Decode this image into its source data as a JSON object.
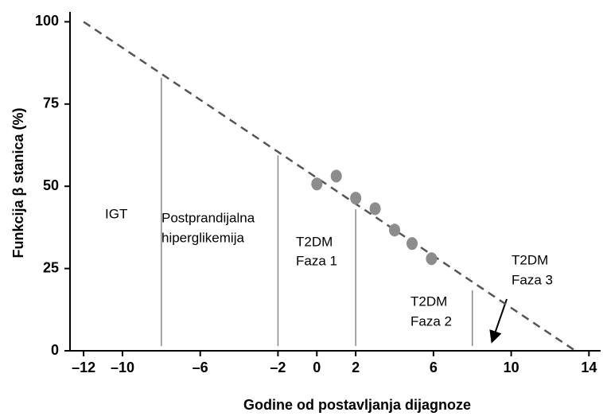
{
  "chart_data": {
    "type": "scatter",
    "xlabel": "Godine od postavljanja dijagnoze",
    "ylabel": "Funkcija β stanica (%)",
    "xlim": [
      -12.7,
      14.6
    ],
    "ylim": [
      0,
      103
    ],
    "xticks": [
      {
        "value": -12,
        "label": "–12"
      },
      {
        "value": -10,
        "label": "–10"
      },
      {
        "value": -6,
        "label": "–6"
      },
      {
        "value": -2,
        "label": "–2"
      },
      0,
      2,
      6,
      10,
      14
    ],
    "yticks": [
      0,
      25,
      50,
      75,
      100
    ],
    "color": "#8c8c8c",
    "x": [
      0,
      1,
      2,
      3,
      4,
      4.9,
      5.9
    ],
    "values": [
      50.7,
      53.1,
      46.4,
      43.2,
      36.7,
      32.6,
      28.0
    ],
    "trend": {
      "x": [
        -12,
        13.3
      ],
      "y": [
        100,
        0
      ]
    },
    "vlines": [
      {
        "x": -8,
        "top": 83
      },
      {
        "x": -2,
        "top": 59.4
      },
      {
        "x": 2,
        "top": 43
      },
      {
        "x": 8,
        "top": 18.4
      }
    ],
    "annotations": [
      [
        "IGT"
      ],
      [
        "Postprandijalna",
        "hiperglikemija"
      ],
      [
        "T2DM",
        "Faza 1"
      ],
      [
        "T2DM",
        "Faza 2"
      ],
      [
        "T2DM",
        "Faza 3"
      ]
    ]
  }
}
